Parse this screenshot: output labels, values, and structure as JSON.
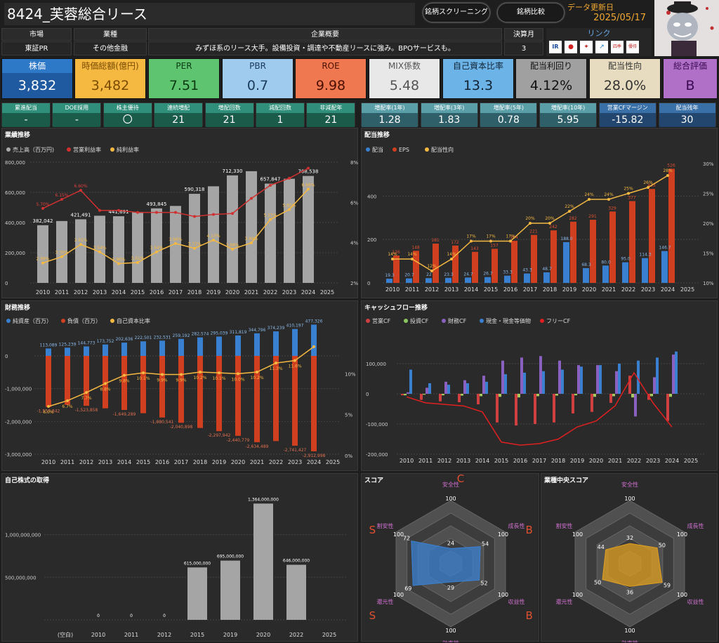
{
  "header": {
    "title": "8424_芙蓉総合リース",
    "btn_screening": "銘柄スクリーニング",
    "btn_compare": "銘柄比較",
    "update_label": "データ更新日",
    "update_date": "2025/05/17"
  },
  "info": {
    "market_label": "市場",
    "market": "東証PR",
    "industry_label": "業種",
    "industry": "その他金融",
    "overview_label": "企業概要",
    "overview": "みずほ系のリース大手。設備投資・調達や不動産リースに強み。BPOサービスも。",
    "fiscal_label": "決算月",
    "fiscal": "3",
    "link_label": "リンク"
  },
  "kpi": [
    {
      "label": "株価",
      "value": "3,832",
      "bg": "#2e6db0",
      "lbg": "#4a90d9",
      "color": "#fff"
    },
    {
      "label": "時価総額(億円)",
      "value": "3,482",
      "bg": "#f5b942",
      "lbg": "#f5b942",
      "color": "#7a4b00"
    },
    {
      "label": "PER",
      "value": "7.51",
      "bg": "#5fc470",
      "lbg": "#5fc470",
      "color": "#0a3a12"
    },
    {
      "label": "PBR",
      "value": "0.7",
      "bg": "#9ecbee",
      "lbg": "#9ecbee",
      "color": "#1a3a5a"
    },
    {
      "label": "ROE",
      "value": "9.98",
      "bg": "#f07850",
      "lbg": "#f07850",
      "color": "#4a1000"
    },
    {
      "label": "MIX係数",
      "value": "5.48",
      "bg": "#e8e8e8",
      "lbg": "#e8e8e8",
      "color": "#555"
    },
    {
      "label": "自己資本比率",
      "value": "13.3",
      "bg": "#6cb4e8",
      "lbg": "#6cb4e8",
      "color": "#123"
    },
    {
      "label": "配当利回り",
      "value": "4.12%",
      "bg": "#a0a0a0",
      "lbg": "#a0a0a0",
      "color": "#111"
    },
    {
      "label": "配当性向",
      "value": "28.0%",
      "bg": "#e8dcc0",
      "lbg": "#e8dcc0",
      "color": "#333"
    },
    {
      "label": "総合評価",
      "value": "B",
      "bg": "#b070c8",
      "lbg": "#b070c8",
      "color": "#3a0a50"
    }
  ],
  "stats": [
    {
      "label": "累進配当",
      "value": "-"
    },
    {
      "label": "DOE採用",
      "value": "-"
    },
    {
      "label": "株主優待",
      "value": "〇"
    },
    {
      "label": "連続増配",
      "value": "21"
    },
    {
      "label": "増配回数",
      "value": "21"
    },
    {
      "label": "減配回数",
      "value": "1"
    },
    {
      "label": "非減配年",
      "value": "21"
    },
    {
      "label": "増配率(1年)",
      "value": "1.28"
    },
    {
      "label": "増配率(3年)",
      "value": "1.83"
    },
    {
      "label": "増配率(5年)",
      "value": "0.78"
    },
    {
      "label": "増配率(10年)",
      "value": "5.95"
    },
    {
      "label": "営業CFマージン",
      "value": "-15.82"
    },
    {
      "label": "配当残年",
      "value": "30"
    }
  ],
  "panels": {
    "gyoseki": "業績推移",
    "haito": "配当推移",
    "zaimu": "財務推移",
    "cf": "キャッシュフロー推移",
    "jisha": "自己株式の取得",
    "score": "スコア",
    "median": "業種中央スコア"
  },
  "years": [
    "2010",
    "2011",
    "2012",
    "2013",
    "2014",
    "2015",
    "2016",
    "2017",
    "2018",
    "2019",
    "2020",
    "2021",
    "2022",
    "2023",
    "2024",
    "2025"
  ],
  "chart_data": [
    {
      "type": "bar",
      "title": "業績推移",
      "legend": [
        "売上高（百万円)",
        "営業利益率",
        "純利益率"
      ],
      "sales": [
        382042,
        410000,
        421491,
        445000,
        441691,
        470000,
        493845,
        510000,
        590318,
        640000,
        712330,
        740000,
        657847,
        690000,
        708538,
        null
      ],
      "sales_labels": [
        "382,042",
        "",
        "421,491",
        "",
        "441,691",
        "",
        "493,845",
        "",
        "590,318",
        "",
        "712,330",
        "",
        "657,847",
        "",
        "708,538",
        ""
      ],
      "op_margin": [
        5.7,
        6.15,
        6.6,
        5.6,
        5.6,
        5.5,
        5.5,
        5.5,
        5.3,
        5.4,
        5.45,
        6.2,
        6.85,
        7.2,
        7.7,
        null
      ],
      "net_margin": [
        2.99,
        3.3,
        3.91,
        3.54,
        2.96,
        3.01,
        3.54,
        3.96,
        3.72,
        4.13,
        3.68,
        3.99,
        5.15,
        5.65,
        6.66,
        null
      ],
      "net_labels": [
        "2.99%",
        "3.30%",
        "3.91%",
        "3.54%",
        "2.96%",
        "3.01%",
        "3.54%",
        "3.96%",
        "3.72%",
        "4.13%",
        "3.68%",
        "3.99%",
        "5.15%",
        "5.65%",
        "6.66%",
        ""
      ],
      "op_labels": [
        "5.70%",
        "6.15%",
        "6.60%",
        "",
        "",
        "",
        "",
        "",
        "",
        "",
        "",
        "",
        "",
        "",
        "",
        ""
      ],
      "yticks": [
        "0",
        "200,000",
        "400,000",
        "600,000",
        "800,000"
      ],
      "y2ticks": [
        "2%",
        "4%",
        "6%",
        "8%"
      ]
    },
    {
      "type": "bar",
      "title": "配当推移",
      "legend": [
        "配当",
        "EPS",
        "配当性向"
      ],
      "div": [
        19.3,
        20.7,
        22.0,
        23.3,
        24.7,
        26.7,
        33.3,
        43.3,
        48.7,
        188.0,
        68.3,
        80.0,
        95.0,
        114.3,
        146.7,
        null
      ],
      "div_labels": [
        "19.3",
        "20.7",
        "22",
        "23.3",
        "24.7",
        "26.7",
        "33.3",
        "43.3",
        "48.7",
        "188.0",
        "68.3",
        "80.0",
        "95.0",
        "114.3",
        "146.7",
        ""
      ],
      "eps": [
        126,
        148,
        181,
        172,
        143,
        157,
        194,
        221,
        242,
        282,
        291,
        329,
        377,
        433,
        526,
        null
      ],
      "payout": [
        14,
        14,
        12,
        14,
        17,
        17,
        17,
        20,
        20,
        22,
        24,
        24,
        25,
        26,
        28,
        null
      ],
      "payout_labels": [
        "14%",
        "14%",
        "12%",
        "14%",
        "17%",
        "17%",
        "17%",
        "20%",
        "20%",
        "22%",
        "24%",
        "24%",
        "25%",
        "26%",
        "28%",
        ""
      ],
      "yticks": [
        "0",
        "200",
        "400"
      ],
      "y2ticks": [
        "10%",
        "15%",
        "20%",
        "25%",
        "30%"
      ]
    },
    {
      "type": "bar",
      "title": "財務推移",
      "legend": [
        "純資産（百万）",
        "負債（百万）",
        "自己資本比率"
      ],
      "equity": [
        113089,
        125239,
        144773,
        173752,
        202636,
        222501,
        232531,
        259192,
        282574,
        295039,
        311819,
        344796,
        374239,
        410197,
        477326,
        null
      ],
      "equity_labels": [
        "113,089",
        "125,239",
        "144,773",
        "173,752",
        "202,636",
        "222,501",
        "232,531",
        "259,192",
        "282,574",
        "295,039",
        "311,819",
        "344,796",
        "374,239",
        "410,197",
        "477,326",
        ""
      ],
      "debt": [
        -1557842,
        -1490000,
        -1523858,
        -1600000,
        -1649289,
        -1750000,
        -1880541,
        -2040898,
        -2200000,
        -2297942,
        -2440779,
        -2634489,
        -2600000,
        -2741427,
        -2912998,
        null
      ],
      "debt_labels": [
        "-1,557,842",
        "",
        "-1,523,858",
        "",
        "-1,649,289",
        "",
        "-1,880,541",
        "-2,040,898",
        "",
        "-2,297,942",
        "-2,440,779",
        "-2,634,489",
        "",
        "-2,741,427",
        "-2,912,998",
        ""
      ],
      "ratio": [
        6.0,
        6.7,
        7.7,
        8.8,
        9.8,
        10.1,
        9.9,
        9.9,
        10.2,
        10.1,
        10.0,
        10.2,
        11.3,
        11.6,
        13.3,
        null
      ],
      "ratio_labels": [
        "6.0%",
        "6.7%",
        "7.7%",
        "8.8%",
        "9.8%",
        "10.1%",
        "9.9%",
        "9.9%",
        "10.2%",
        "10.1%",
        "10.0%",
        "10.2%",
        "11.3%",
        "11.6%",
        "",
        ""
      ],
      "yticks": [
        "0",
        "-1,000,000",
        "-2,000,000",
        "-3,000,000"
      ],
      "y2ticks": [
        "0%",
        "5%",
        "10%"
      ]
    },
    {
      "type": "bar",
      "title": "キャッシュフロー推移",
      "legend": [
        "営業CF",
        "投資CF",
        "財務CF",
        "現金・現金等価物",
        "フリーCF"
      ],
      "op": [
        -5000,
        -20000,
        -25000,
        -28000,
        -35000,
        -95000,
        -105000,
        -100000,
        -95000,
        -65000,
        -60000,
        -30000,
        60000,
        -20000,
        -90000,
        null
      ],
      "inv": [
        -5000,
        -3000,
        -5000,
        -6000,
        -8000,
        -10000,
        -12000,
        -8000,
        -6000,
        -5000,
        -10000,
        -8000,
        -12000,
        -8000,
        -10000,
        null
      ],
      "fin": [
        5000,
        20000,
        40000,
        45000,
        60000,
        110000,
        120000,
        125000,
        110000,
        95000,
        95000,
        75000,
        -75000,
        55000,
        130000,
        null
      ],
      "cash": [
        80000,
        35000,
        30000,
        35000,
        40000,
        65000,
        70000,
        75000,
        80000,
        90000,
        95000,
        100000,
        110000,
        120000,
        140000,
        null
      ],
      "fcf": [
        -10000,
        -30000,
        -35000,
        -40000,
        -60000,
        -160000,
        -170000,
        -165000,
        -150000,
        -110000,
        -90000,
        -40000,
        70000,
        -30000,
        -110000,
        null
      ],
      "yticks": [
        "-200,000",
        "-100,000",
        "0",
        "100,000"
      ]
    },
    {
      "type": "bar",
      "title": "自己株式の取得",
      "categories": [
        "(空白)",
        "2010",
        "2011",
        "2012",
        "2015",
        "2019",
        "2020",
        "2022",
        "2025"
      ],
      "values": [
        0,
        0,
        0,
        0,
        615000000,
        695000000,
        1364000000,
        646000000,
        null
      ],
      "labels": [
        "",
        "0",
        "0",
        "0",
        "615,000,000",
        "695,000,000",
        "1,364,000,000",
        "646,000,000",
        ""
      ],
      "yticks": [
        "500,000,000",
        "1,000,000,000"
      ]
    },
    {
      "type": "radar",
      "title": "スコア",
      "axes": [
        "安全性",
        "成長性",
        "収益性",
        "効率性",
        "還元性",
        "割安性"
      ],
      "values": [
        24,
        54,
        52,
        29,
        69,
        72
      ],
      "grades": [
        "C",
        "B",
        "B",
        "C",
        "S",
        "S"
      ],
      "max": 100
    },
    {
      "type": "radar",
      "title": "業種中央スコア",
      "axes": [
        "安全性",
        "成長性",
        "収益性",
        "効率性",
        "還元性",
        "割安性"
      ],
      "values": [
        32,
        50,
        59,
        36,
        50,
        44
      ],
      "max": 100
    }
  ]
}
